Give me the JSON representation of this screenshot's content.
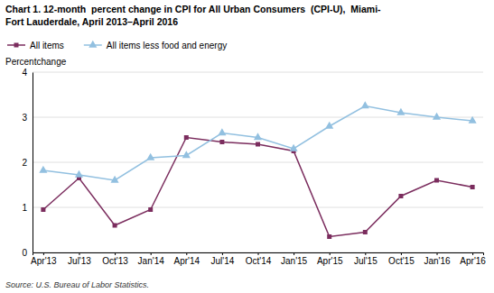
{
  "chart_data": {
    "type": "line",
    "title": "Chart 1. 12-month  percent change in CPI for All Urban Consumers  (CPI-U),  Miami-\nFort Lauderdale, April 2013–April 2016",
    "ylabel": "Percentchange",
    "source": "Source: U.S. Bureau of Labor Statistics.",
    "categories": [
      "Apr'13",
      "Jul'13",
      "Oct'13",
      "Jan'14",
      "Apr'14",
      "Jul'14",
      "Oct'14",
      "Jan'15",
      "Apr'15",
      "Jul'15",
      "Oct'15",
      "Jan'16",
      "Apr'16"
    ],
    "series": [
      {
        "name": "All items",
        "color": "#7B2D5E",
        "marker": "square",
        "values": [
          0.95,
          1.65,
          0.6,
          0.95,
          2.55,
          2.45,
          2.4,
          2.25,
          0.35,
          0.45,
          1.25,
          1.6,
          1.45
        ]
      },
      {
        "name": "All items less food and energy",
        "color": "#92C0E0",
        "marker": "triangle",
        "values": [
          1.82,
          1.72,
          1.6,
          2.1,
          2.15,
          2.65,
          2.55,
          2.3,
          2.8,
          3.25,
          3.1,
          3.0,
          2.92
        ]
      }
    ],
    "ylim": [
      0,
      4
    ],
    "yticks": [
      0,
      1,
      2,
      3,
      4
    ],
    "grid": true,
    "legend": "upper left"
  }
}
